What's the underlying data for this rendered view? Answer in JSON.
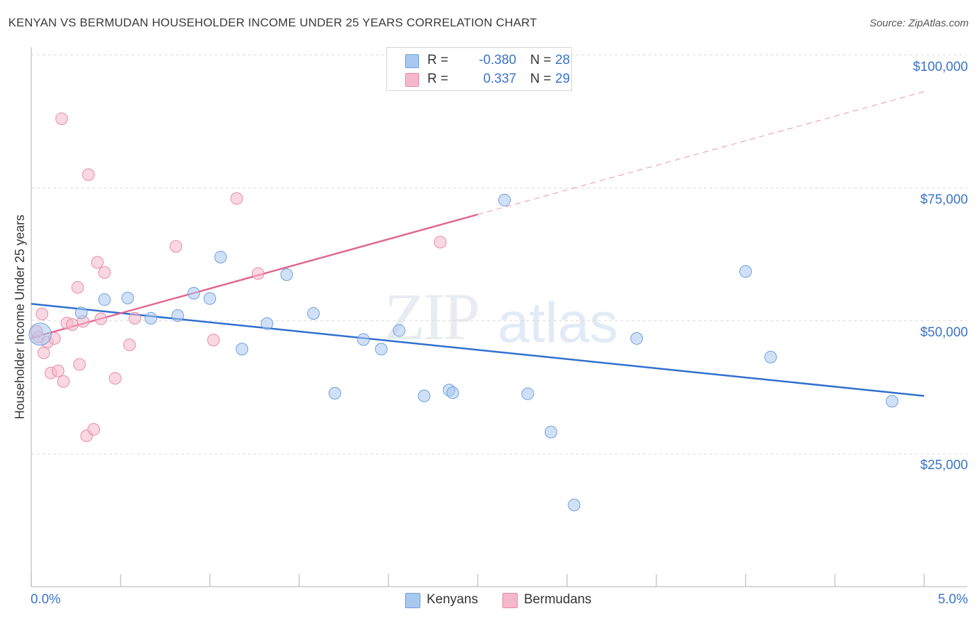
{
  "header": {
    "title": "KENYAN VS BERMUDAN HOUSEHOLDER INCOME UNDER 25 YEARS CORRELATION CHART",
    "source": "Source: ZipAtlas.com"
  },
  "watermark": {
    "left": "ZIP",
    "right": "atlas"
  },
  "legend": {
    "rows": [
      {
        "r_label": "R =",
        "r_value": "-0.380",
        "n_label": "N =",
        "n_value": "28",
        "color": "#a9c8f0"
      },
      {
        "r_label": "R =",
        "r_value": "0.337",
        "n_label": "N =",
        "n_value": "29",
        "color": "#f5b8cb"
      }
    ]
  },
  "colors": {
    "kenyans_fill": "#a9c8f0",
    "kenyans_stroke": "#6d9fdc",
    "kenyans_line": "#2f6fcf",
    "bermudans_fill": "#f5b8cb",
    "bermudans_stroke": "#e48aa8",
    "bermudans_line": "#e0678f",
    "axis_text": "#3a73c8",
    "grid": "#d9d9d9"
  },
  "chart_data": {
    "type": "scatter",
    "title": "KENYAN VS BERMUDAN HOUSEHOLDER INCOME UNDER 25 YEARS CORRELATION CHART",
    "xlabel": "",
    "ylabel": "Householder Income Under 25 years",
    "xlim": [
      0,
      5
    ],
    "ylim": [
      0,
      105000
    ],
    "x_unit": "%",
    "x_tick_labels": [
      "0.0%",
      "5.0%"
    ],
    "y_ticks": [
      25000,
      50000,
      75000,
      100000
    ],
    "y_tick_labels": [
      "$25,000",
      "$50,000",
      "$75,000",
      "$100,000"
    ],
    "grid": "horizontal dashed",
    "legend_position": "bottom-center",
    "series": [
      {
        "name": "Kenyans",
        "points": [
          [
            0.05,
            47500
          ],
          [
            0.28,
            51500
          ],
          [
            0.41,
            54000
          ],
          [
            0.54,
            54300
          ],
          [
            0.67,
            50500
          ],
          [
            0.82,
            51000
          ],
          [
            0.91,
            55200
          ],
          [
            1.0,
            54200
          ],
          [
            1.06,
            62000
          ],
          [
            1.18,
            44700
          ],
          [
            1.32,
            49500
          ],
          [
            1.43,
            58700
          ],
          [
            1.58,
            51400
          ],
          [
            1.7,
            36400
          ],
          [
            1.86,
            46500
          ],
          [
            1.96,
            44700
          ],
          [
            2.06,
            48200
          ],
          [
            2.2,
            35900
          ],
          [
            2.34,
            37000
          ],
          [
            2.36,
            36500
          ],
          [
            2.65,
            72700
          ],
          [
            2.78,
            36300
          ],
          [
            2.91,
            29100
          ],
          [
            3.04,
            15400
          ],
          [
            3.39,
            46700
          ],
          [
            4.0,
            59300
          ],
          [
            4.14,
            43200
          ],
          [
            4.82,
            34900
          ]
        ],
        "trend": {
          "x": [
            0.0,
            5.0
          ],
          "y": [
            53200,
            35900
          ],
          "style": "solid"
        }
      },
      {
        "name": "Bermudans",
        "points": [
          [
            0.04,
            47000
          ],
          [
            0.06,
            51300
          ],
          [
            0.07,
            44000
          ],
          [
            0.09,
            46000
          ],
          [
            0.11,
            40200
          ],
          [
            0.13,
            46700
          ],
          [
            0.15,
            40600
          ],
          [
            0.17,
            88000
          ],
          [
            0.18,
            38600
          ],
          [
            0.2,
            49600
          ],
          [
            0.23,
            49300
          ],
          [
            0.26,
            56300
          ],
          [
            0.27,
            41800
          ],
          [
            0.29,
            49900
          ],
          [
            0.31,
            28400
          ],
          [
            0.32,
            77500
          ],
          [
            0.35,
            29600
          ],
          [
            0.37,
            61000
          ],
          [
            0.39,
            50400
          ],
          [
            0.41,
            59100
          ],
          [
            0.47,
            39200
          ],
          [
            0.55,
            45500
          ],
          [
            0.58,
            50500
          ],
          [
            0.81,
            64000
          ],
          [
            1.02,
            46400
          ],
          [
            1.15,
            73000
          ],
          [
            1.27,
            58900
          ],
          [
            2.29,
            64800
          ],
          [
            0.03,
            48000
          ]
        ],
        "trend": {
          "x": [
            0.0,
            2.5
          ],
          "y": [
            46800,
            70000
          ],
          "style": "solid"
        },
        "trend_extension": {
          "x": [
            2.5,
            5.0
          ],
          "y": [
            70000,
            93100
          ],
          "style": "dashed"
        }
      }
    ]
  },
  "bottom_legend": {
    "items": [
      "Kenyans",
      "Bermudans"
    ]
  }
}
